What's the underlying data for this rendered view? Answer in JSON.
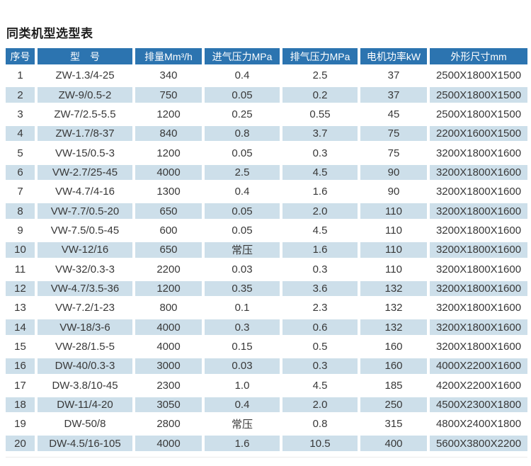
{
  "page": {
    "title": "同类机型选型表"
  },
  "colors": {
    "header_bg": "#2c74b0",
    "header_text": "#ffffff",
    "alt_row_bg": "#cddfea",
    "body_text": "#383838",
    "title_text": "#1f1f1f"
  },
  "table": {
    "columns": [
      {
        "label": "序号"
      },
      {
        "label": "型　号"
      },
      {
        "label": "排量Mm³/h"
      },
      {
        "label": "进气压力MPa"
      },
      {
        "label": "排气压力MPa"
      },
      {
        "label": "电机功率kW"
      },
      {
        "label": "外形尺寸mm"
      }
    ],
    "rows": [
      [
        "1",
        "ZW-1.3/4-25",
        "340",
        "0.4",
        "2.5",
        "37",
        "2500X1800X1500"
      ],
      [
        "2",
        "ZW-9/0.5-2",
        "750",
        "0.05",
        "0.2",
        "37",
        "2500X1800X1500"
      ],
      [
        "3",
        "ZW-7/2.5-5.5",
        "1200",
        "0.25",
        "0.55",
        "45",
        "2500X1800X1500"
      ],
      [
        "4",
        "ZW-1.7/8-37",
        "840",
        "0.8",
        "3.7",
        "75",
        "2200X1600X1500"
      ],
      [
        "5",
        "VW-15/0.5-3",
        "1200",
        "0.05",
        "0.3",
        "75",
        "3200X1800X1600"
      ],
      [
        "6",
        "VW-2.7/25-45",
        "4000",
        "2.5",
        "4.5",
        "90",
        "3200X1800X1600"
      ],
      [
        "7",
        "VW-4.7/4-16",
        "1300",
        "0.4",
        "1.6",
        "90",
        "3200X1800X1600"
      ],
      [
        "8",
        "VW-7.7/0.5-20",
        "650",
        "0.05",
        "2.0",
        "110",
        "3200X1800X1600"
      ],
      [
        "9",
        "VW-7.5/0.5-45",
        "600",
        "0.05",
        "4.5",
        "110",
        "3200X1800X1600"
      ],
      [
        "10",
        "VW-12/16",
        "650",
        "常压",
        "1.6",
        "110",
        "3200X1800X1600"
      ],
      [
        "11",
        "VW-32/0.3-3",
        "2200",
        "0.03",
        "0.3",
        "110",
        "3200X1800X1600"
      ],
      [
        "12",
        "VW-4.7/3.5-36",
        "1200",
        "0.35",
        "3.6",
        "132",
        "3200X1800X1600"
      ],
      [
        "13",
        "VW-7.2/1-23",
        "800",
        "0.1",
        "2.3",
        "132",
        "3200X1800X1600"
      ],
      [
        "14",
        "VW-18/3-6",
        "4000",
        "0.3",
        "0.6",
        "132",
        "3200X1800X1600"
      ],
      [
        "15",
        "VW-28/1.5-5",
        "4000",
        "0.15",
        "0.5",
        "160",
        "3200X1800X1600"
      ],
      [
        "16",
        "DW-40/0.3-3",
        "3000",
        "0.03",
        "0.3",
        "160",
        "4000X2200X1600"
      ],
      [
        "17",
        "DW-3.8/10-45",
        "2300",
        "1.0",
        "4.5",
        "185",
        "4200X2200X1600"
      ],
      [
        "18",
        "DW-11/4-20",
        "3050",
        "0.4",
        "2.0",
        "250",
        "4500X2300X1800"
      ],
      [
        "19",
        "DW-50/8",
        "2800",
        "常压",
        "0.8",
        "315",
        "4800X2400X1800"
      ],
      [
        "20",
        "DW-4.5/16-105",
        "4000",
        "1.6",
        "10.5",
        "400",
        "5600X3800X2200"
      ]
    ]
  }
}
